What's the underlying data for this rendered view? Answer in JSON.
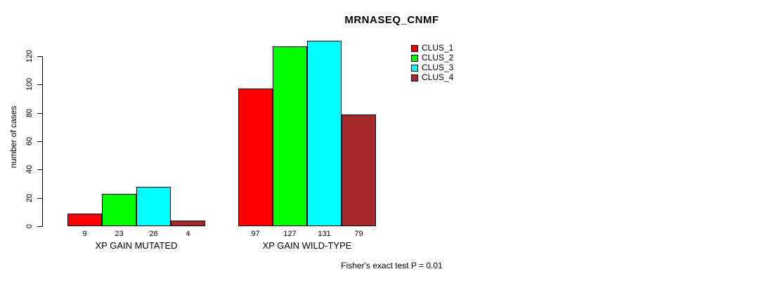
{
  "chart_data": {
    "type": "bar",
    "title": "MRNASEQ_CNMF",
    "xlabel": "",
    "ylabel": "number of cases",
    "groups": [
      "XP GAIN MUTATED",
      "XP GAIN WILD-TYPE"
    ],
    "series": [
      {
        "name": "CLUS_1",
        "color": "#FF0000",
        "values": [
          9,
          97
        ]
      },
      {
        "name": "CLUS_2",
        "color": "#00FF00",
        "values": [
          23,
          127
        ]
      },
      {
        "name": "CLUS_3",
        "color": "#00FFFF",
        "values": [
          28,
          131
        ]
      },
      {
        "name": "CLUS_4",
        "color": "#A52A2A",
        "values": [
          4,
          79
        ]
      }
    ],
    "y_ticks": [
      0,
      20,
      40,
      60,
      80,
      100,
      120
    ],
    "ylim": [
      0,
      131
    ],
    "grid": false,
    "legend_position": "top-right-inside",
    "annotation": "Fisher's exact test P = 0.01"
  }
}
